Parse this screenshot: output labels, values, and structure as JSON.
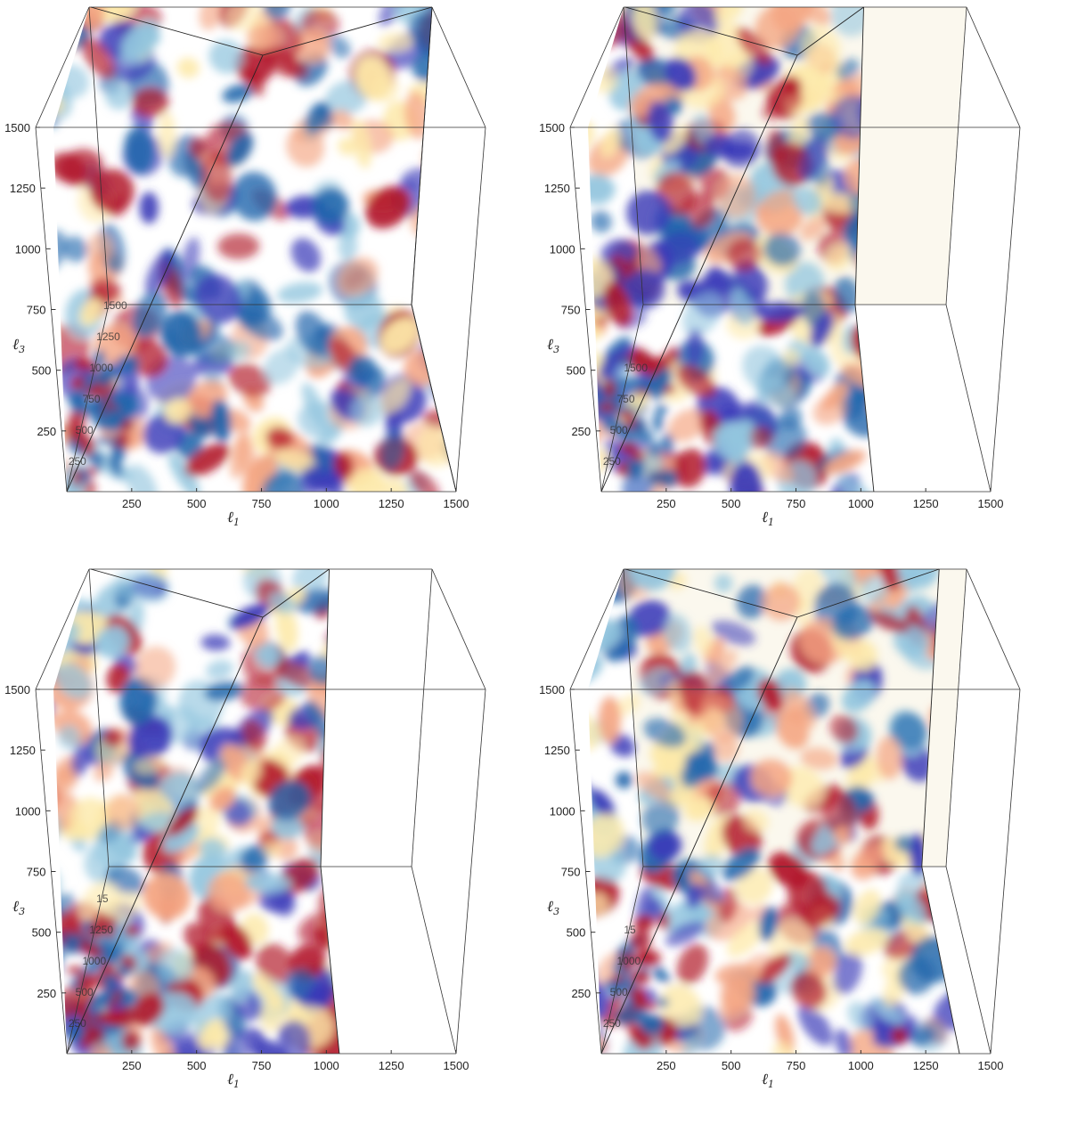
{
  "chart_data": [
    {
      "type": "volume",
      "xlabel_main": "ℓ",
      "xlabel_sub": "1",
      "ylabel_main": "ℓ",
      "ylabel_sub": "3",
      "x_ticks": [
        "250",
        "500",
        "750",
        "1000",
        "1250",
        "1500"
      ],
      "y_ticks": [
        "250",
        "500",
        "750",
        "1000",
        "1250",
        "1500"
      ],
      "depth_ticks": [
        "250",
        "500",
        "750",
        "1000",
        "1250",
        "1500"
      ],
      "range": [
        0,
        1500
      ],
      "l1_max": 1500,
      "colormap": [
        "#b2182b",
        "#f4a582",
        "#fde9a9",
        "#92c5de",
        "#2166ac",
        "#3a3ab8"
      ],
      "background_wall": false
    },
    {
      "type": "volume",
      "xlabel_main": "ℓ",
      "xlabel_sub": "1",
      "ylabel_main": "ℓ",
      "ylabel_sub": "3",
      "x_ticks": [
        "250",
        "500",
        "750",
        "1000",
        "1250",
        "1500"
      ],
      "y_ticks": [
        "250",
        "500",
        "750",
        "1000",
        "1250",
        "1500"
      ],
      "depth_ticks": [
        "250",
        "500",
        "750",
        "1500"
      ],
      "range": [
        0,
        1500
      ],
      "l1_max": 1050,
      "colormap": [
        "#b2182b",
        "#f4a582",
        "#fde9a9",
        "#92c5de",
        "#2166ac",
        "#3a3ab8"
      ],
      "background_wall": true
    },
    {
      "type": "volume",
      "xlabel_main": "ℓ",
      "xlabel_sub": "1",
      "ylabel_main": "ℓ",
      "ylabel_sub": "3",
      "x_ticks": [
        "250",
        "500",
        "750",
        "1000",
        "1250",
        "1500"
      ],
      "y_ticks": [
        "250",
        "500",
        "750",
        "1000",
        "1250",
        "1500"
      ],
      "depth_ticks": [
        "250",
        "500",
        "1000",
        "1250",
        "15"
      ],
      "range": [
        0,
        1500
      ],
      "l1_max": 1050,
      "colormap": [
        "#b2182b",
        "#f4a582",
        "#fde9a9",
        "#92c5de",
        "#2166ac",
        "#3a3ab8"
      ],
      "background_wall": false
    },
    {
      "type": "volume",
      "xlabel_main": "ℓ",
      "xlabel_sub": "1",
      "ylabel_main": "ℓ",
      "ylabel_sub": "3",
      "x_ticks": [
        "250",
        "500",
        "750",
        "1000",
        "1250",
        "1500"
      ],
      "y_ticks": [
        "250",
        "500",
        "750",
        "1000",
        "1250",
        "1500"
      ],
      "depth_ticks": [
        "250",
        "500",
        "1000",
        "15"
      ],
      "range": [
        0,
        1500
      ],
      "l1_max": 1380,
      "colormap": [
        "#b2182b",
        "#f4a582",
        "#fde9a9",
        "#92c5de",
        "#2166ac",
        "#3a3ab8"
      ],
      "background_wall": true
    }
  ]
}
